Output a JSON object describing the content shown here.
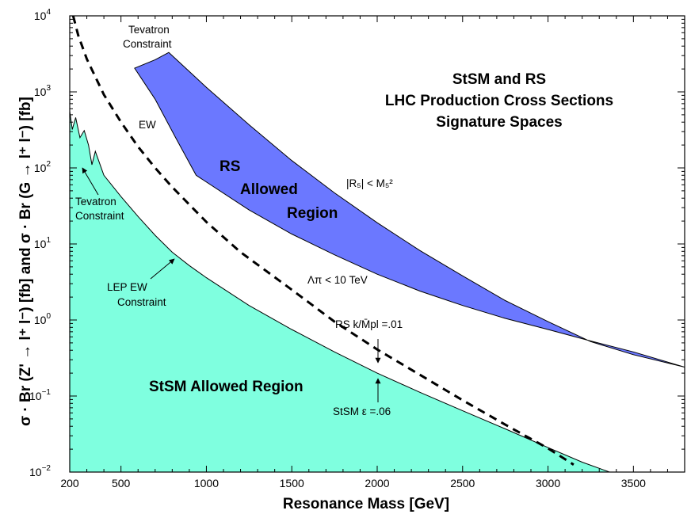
{
  "chart_data": {
    "type": "area",
    "title": [
      "StSM and RS",
      "LHC Production Cross Sections",
      "Signature Spaces"
    ],
    "xlabel": "Resonance Mass  [GeV]",
    "ylabel": "σ · Br (Z' → l⁺ l⁻)  [fb]   and   σ · Br (G → l⁺ l⁻)  [fb]",
    "xlim": [
      200,
      3800
    ],
    "ylim": [
      0.01,
      10000
    ],
    "yscale": "log",
    "x_ticks": [
      200,
      500,
      1000,
      1500,
      2000,
      2500,
      3000,
      3500
    ],
    "x_tick_labels": [
      "200",
      "500",
      "1000",
      "1500",
      "2000",
      "2500",
      "3000",
      "3500"
    ],
    "y_ticks": [
      {
        "value": 0.01,
        "base": "10",
        "exp": "−2"
      },
      {
        "value": 0.1,
        "base": "10",
        "exp": "−1"
      },
      {
        "value": 1,
        "base": "10",
        "exp": "0"
      },
      {
        "value": 10,
        "base": "10",
        "exp": "1"
      },
      {
        "value": 100,
        "base": "10",
        "exp": "2"
      },
      {
        "value": 1000,
        "base": "10",
        "exp": "3"
      },
      {
        "value": 10000,
        "base": "10",
        "exp": "4"
      }
    ],
    "colors": {
      "stsm_fill": "#7fffdf",
      "rs_fill": "#6b78ff",
      "stroke": "#000000"
    },
    "series": [
      {
        "name": "StSM Allowed Region",
        "kind": "filled_below",
        "points": [
          [
            200,
            560
          ],
          [
            215,
            320
          ],
          [
            235,
            460
          ],
          [
            260,
            250
          ],
          [
            285,
            310
          ],
          [
            310,
            200
          ],
          [
            330,
            110
          ],
          [
            350,
            165
          ],
          [
            400,
            80
          ],
          [
            500,
            42
          ],
          [
            600,
            23
          ],
          [
            700,
            13
          ],
          [
            800,
            7.8
          ],
          [
            900,
            5.2
          ],
          [
            1000,
            3.6
          ],
          [
            1250,
            1.55
          ],
          [
            1500,
            0.75
          ],
          [
            1750,
            0.38
          ],
          [
            2000,
            0.2
          ],
          [
            2250,
            0.112
          ],
          [
            2500,
            0.064
          ],
          [
            2750,
            0.037
          ],
          [
            3000,
            0.021
          ],
          [
            3200,
            0.0135
          ],
          [
            3360,
            0.01
          ]
        ]
      },
      {
        "name": "RS k/Mpl = .01 (StSM ε = .06)",
        "kind": "dashed_line",
        "points": [
          [
            220,
            10000
          ],
          [
            250,
            5500
          ],
          [
            300,
            2700
          ],
          [
            400,
            920
          ],
          [
            500,
            400
          ],
          [
            600,
            190
          ],
          [
            700,
            100
          ],
          [
            800,
            56
          ],
          [
            1000,
            19.5
          ],
          [
            1200,
            7.8
          ],
          [
            1500,
            2.5
          ],
          [
            1750,
            0.95
          ],
          [
            2000,
            0.41
          ],
          [
            2250,
            0.19
          ],
          [
            2500,
            0.088
          ],
          [
            2750,
            0.042
          ],
          [
            3000,
            0.0205
          ],
          [
            3150,
            0.0125
          ]
        ]
      },
      {
        "name": "RS Allowed Region",
        "kind": "band",
        "upper": [
          [
            580,
            2050
          ],
          [
            700,
            2650
          ],
          [
            780,
            3300
          ],
          [
            1000,
            1150
          ],
          [
            1250,
            370
          ],
          [
            1500,
            125
          ],
          [
            1750,
            47
          ],
          [
            2000,
            19
          ],
          [
            2250,
            8.2
          ],
          [
            2500,
            3.8
          ],
          [
            2750,
            1.8
          ],
          [
            3000,
            0.95
          ],
          [
            3250,
            0.52
          ],
          [
            3500,
            0.35
          ],
          [
            3800,
            0.24
          ]
        ],
        "lower": [
          [
            580,
            2050
          ],
          [
            700,
            800
          ],
          [
            820,
            250
          ],
          [
            940,
            80
          ],
          [
            1250,
            28
          ],
          [
            1500,
            13.5
          ],
          [
            1750,
            7.2
          ],
          [
            2000,
            4.0
          ],
          [
            2250,
            2.4
          ],
          [
            2500,
            1.55
          ],
          [
            2750,
            1.05
          ],
          [
            3000,
            0.75
          ],
          [
            3250,
            0.53
          ],
          [
            3500,
            0.38
          ],
          [
            3800,
            0.24
          ]
        ]
      }
    ]
  },
  "annotations": {
    "tevatron_top_line1": "Tevatron",
    "tevatron_top_line2": "Constraint",
    "ew": "EW",
    "rs_region_line1": "RS",
    "rs_region_line2": "Allowed",
    "rs_region_line3": "Region",
    "r5_bound": "|R₅| < M₅²",
    "lambda_bound": "Λπ < 10 TeV",
    "tevatron_left_line1": "Tevatron",
    "tevatron_left_line2": "Constraint",
    "lep_line1": "LEP EW",
    "lep_line2": "Constraint",
    "rs_k": "RS  k/M̄pl =.01",
    "stsm_region": "StSM Allowed Region",
    "stsm_eps": "StSM  ε =.06"
  }
}
